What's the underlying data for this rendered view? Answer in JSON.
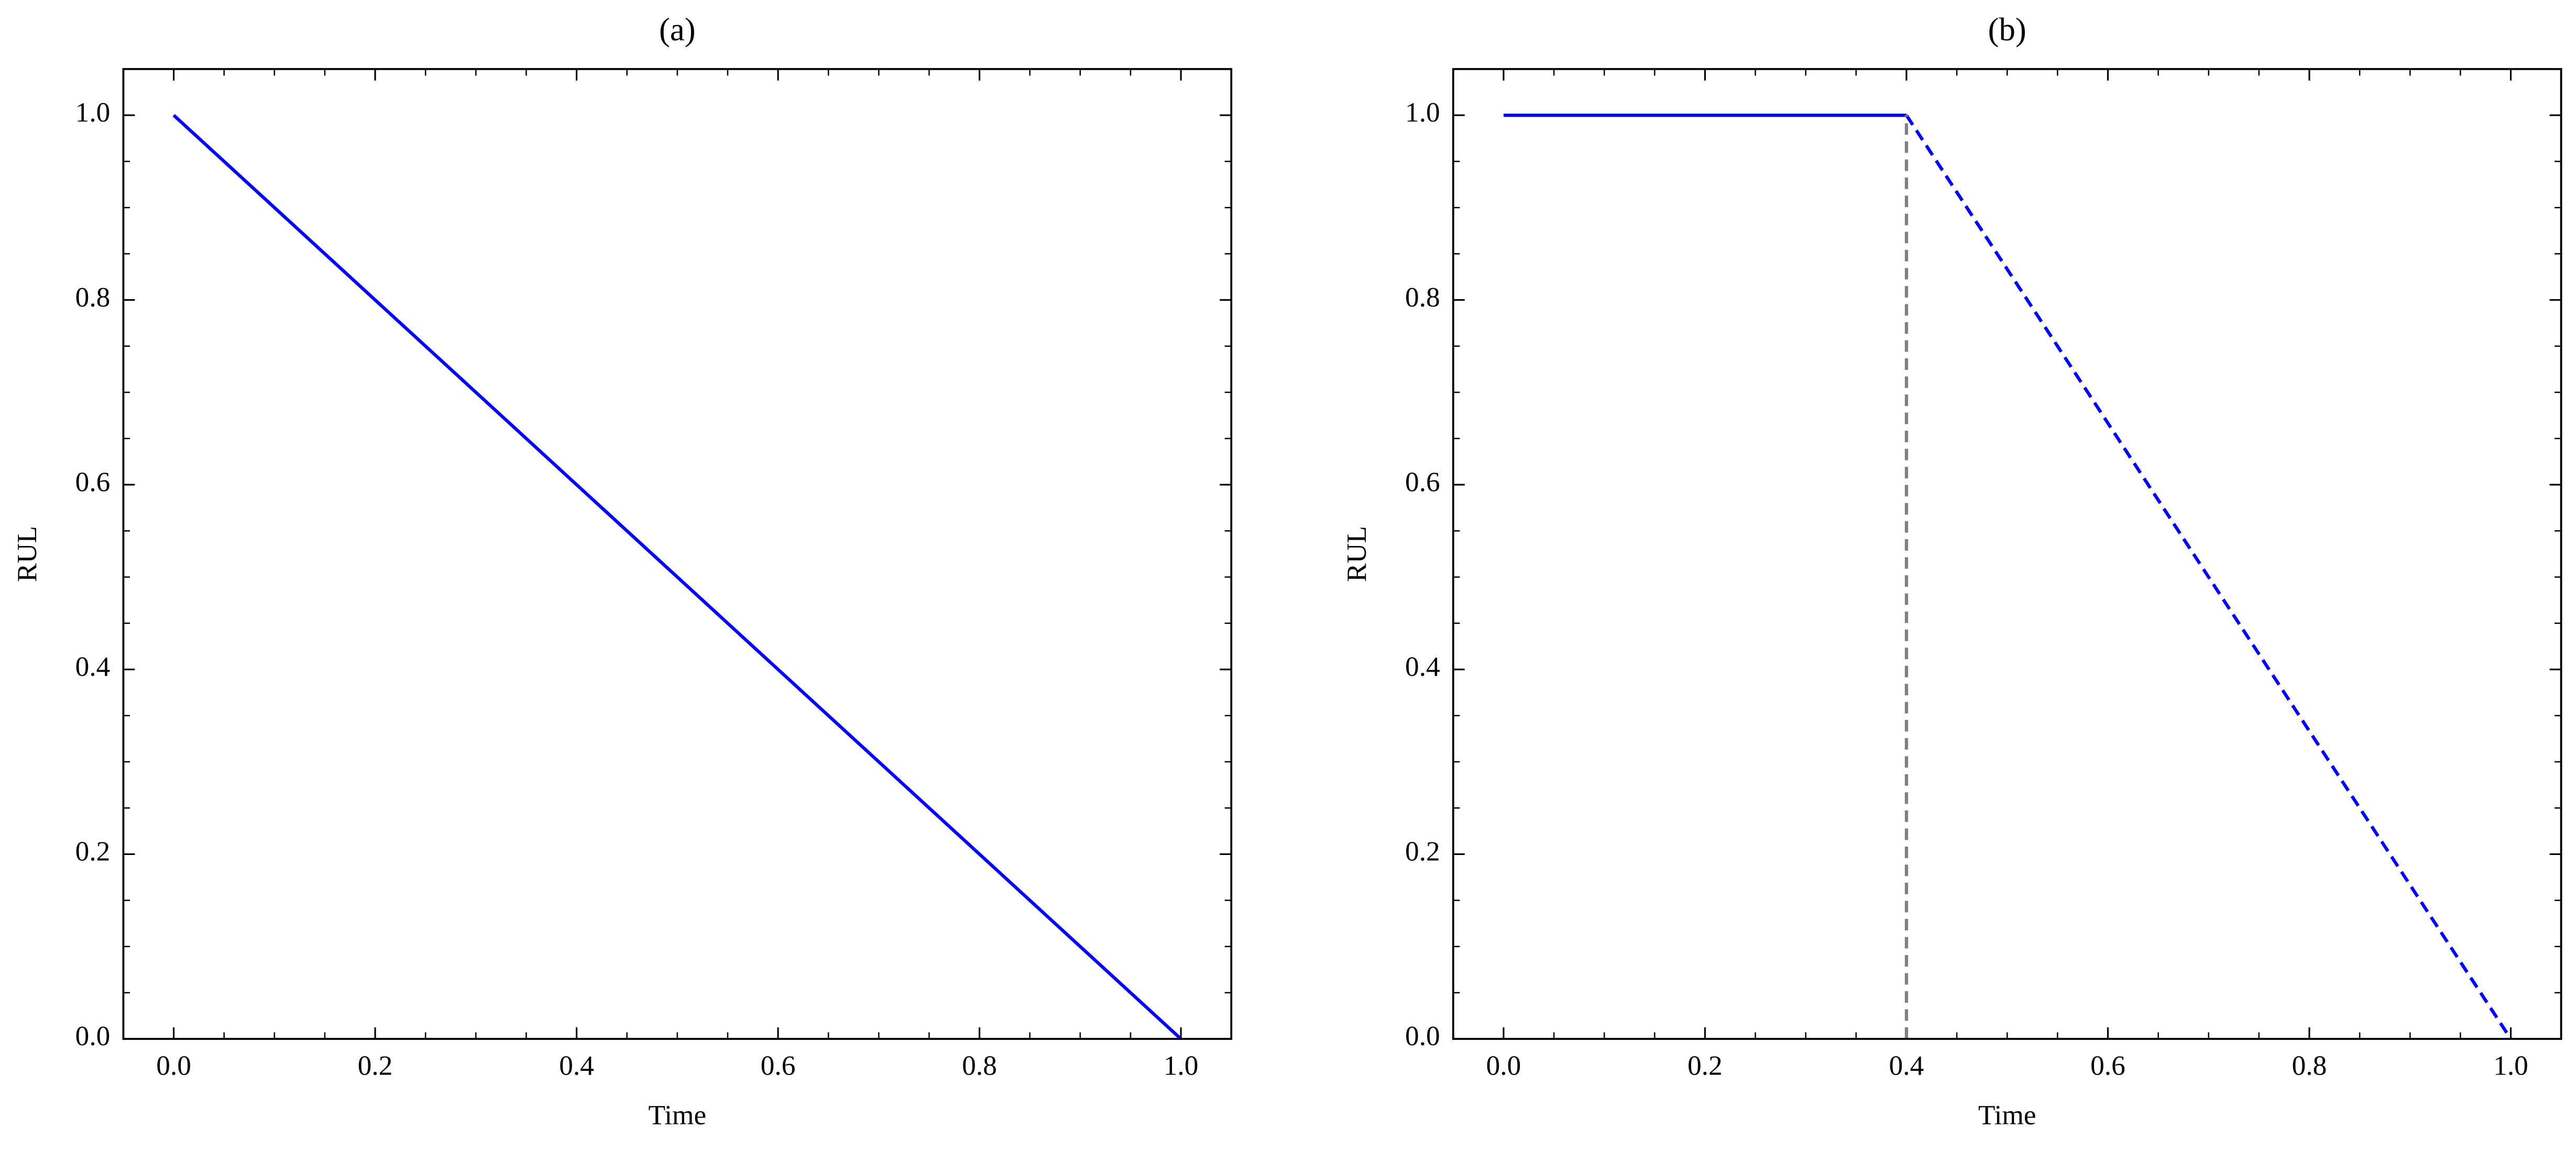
{
  "chart_data": [
    {
      "type": "line",
      "title": "(a)",
      "xlabel": "Time",
      "ylabel": "RUL",
      "xlim": [
        -0.05,
        1.05
      ],
      "ylim": [
        0,
        1.05
      ],
      "xticks": [
        {
          "value": 0,
          "label": "0.0"
        },
        0.2,
        0.4,
        0.6,
        0.8,
        {
          "value": 1,
          "label": "1.0"
        }
      ],
      "yticks": [
        {
          "value": 0,
          "label": "0.0"
        },
        0.2,
        0.4,
        0.6,
        0.8,
        {
          "value": 1,
          "label": "1.0"
        }
      ],
      "xminorticks": [
        0.05,
        0.1,
        0.15,
        0.25,
        0.3,
        0.35,
        0.45,
        0.5,
        0.55,
        0.65,
        0.7,
        0.75,
        0.85,
        0.9,
        0.95
      ],
      "yminorticks": [
        0.05,
        0.1,
        0.15,
        0.25,
        0.3,
        0.35,
        0.45,
        0.5,
        0.55,
        0.65,
        0.7,
        0.75,
        0.85,
        0.9,
        0.95
      ],
      "series": [
        {
          "color": "#0000ff",
          "linestyle": "solid",
          "x": [
            0,
            1
          ],
          "values": [
            1,
            0
          ]
        }
      ]
    },
    {
      "type": "line",
      "title": "(b)",
      "xlabel": "Time",
      "ylabel": "RUL",
      "xlim": [
        -0.05,
        1.05
      ],
      "ylim": [
        0,
        1.05
      ],
      "xticks": [
        {
          "value": 0,
          "label": "0.0"
        },
        0.2,
        0.4,
        0.6,
        0.8,
        {
          "value": 1,
          "label": "1.0"
        }
      ],
      "yticks": [
        {
          "value": 0,
          "label": "0.0"
        },
        0.2,
        0.4,
        0.6,
        0.8,
        {
          "value": 1,
          "label": "1.0"
        }
      ],
      "xminorticks": [
        0.05,
        0.1,
        0.15,
        0.25,
        0.3,
        0.35,
        0.45,
        0.5,
        0.55,
        0.65,
        0.7,
        0.75,
        0.85,
        0.9,
        0.95
      ],
      "yminorticks": [
        0.05,
        0.1,
        0.15,
        0.25,
        0.3,
        0.35,
        0.45,
        0.5,
        0.55,
        0.65,
        0.7,
        0.75,
        0.85,
        0.9,
        0.95
      ],
      "series": [
        {
          "color": "#0000ff",
          "linestyle": "solid",
          "x": [
            0,
            0.4
          ],
          "values": [
            1,
            1
          ]
        },
        {
          "color": "#0000ff",
          "linestyle": "dashed",
          "x": [
            0.4,
            1
          ],
          "values": [
            1,
            0
          ]
        },
        {
          "color": "#808080",
          "linestyle": "dashed",
          "x": [
            0.4,
            0.4
          ],
          "values": [
            0,
            1
          ]
        }
      ]
    }
  ]
}
